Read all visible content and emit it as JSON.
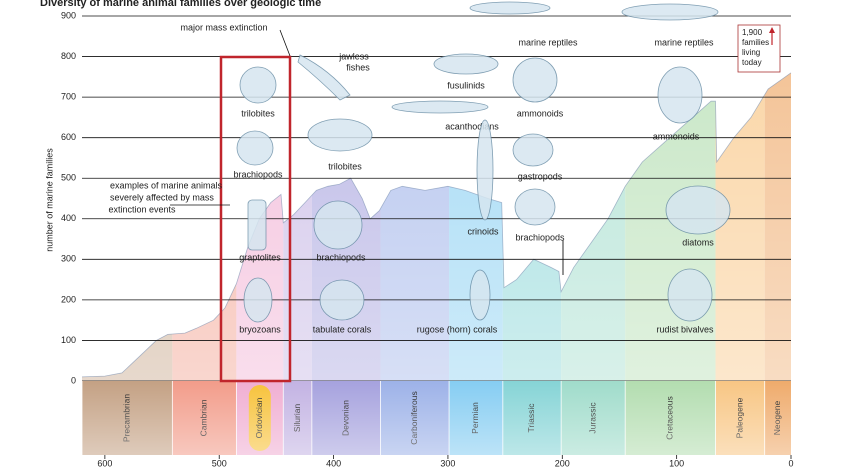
{
  "chart_data": {
    "type": "area",
    "title": "Diversity of marine animal families over geologic time",
    "ylabel": "number of marine families",
    "xlim": [
      620,
      0
    ],
    "ylim": [
      0,
      900
    ],
    "xticks": [
      600,
      500,
      400,
      300,
      200,
      100,
      0
    ],
    "yticks": [
      0,
      100,
      200,
      300,
      400,
      500,
      600,
      700,
      800,
      900
    ],
    "grid": true,
    "x": [
      620,
      600,
      585,
      570,
      555,
      545,
      530,
      520,
      505,
      495,
      485,
      475,
      465,
      455,
      446,
      444,
      435,
      425,
      415,
      405,
      395,
      385,
      375,
      368,
      360,
      350,
      340,
      320,
      300,
      285,
      265,
      253,
      251,
      240,
      225,
      210,
      203,
      201,
      190,
      175,
      160,
      145,
      130,
      110,
      90,
      70,
      66,
      65,
      50,
      35,
      20,
      10,
      0
    ],
    "values": [
      10,
      12,
      20,
      60,
      100,
      115,
      118,
      130,
      150,
      180,
      240,
      330,
      400,
      440,
      460,
      390,
      410,
      440,
      470,
      480,
      485,
      500,
      450,
      400,
      420,
      470,
      480,
      470,
      480,
      470,
      450,
      440,
      230,
      250,
      300,
      280,
      270,
      220,
      280,
      340,
      400,
      480,
      540,
      590,
      640,
      690,
      690,
      540,
      600,
      650,
      720,
      740,
      760
    ],
    "periods": [
      {
        "name": "Precambrian",
        "start": 620,
        "end": 541,
        "color": "#c4a184"
      },
      {
        "name": "Cambrian",
        "start": 541,
        "end": 485,
        "color": "#f29c8a"
      },
      {
        "name": "Ordovician",
        "start": 485,
        "end": 444,
        "color": "#f0aed2"
      },
      {
        "name": "Silurian",
        "start": 444,
        "end": 419,
        "color": "#c3b3e3"
      },
      {
        "name": "Devonian",
        "start": 419,
        "end": 359,
        "color": "#a6a2de"
      },
      {
        "name": "Carboniferous",
        "start": 359,
        "end": 299,
        "color": "#9db2e8"
      },
      {
        "name": "Permian",
        "start": 299,
        "end": 252,
        "color": "#86cdf2"
      },
      {
        "name": "Triassic",
        "start": 252,
        "end": 201,
        "color": "#86d4d6"
      },
      {
        "name": "Jurassic",
        "start": 201,
        "end": 145,
        "color": "#a0dccb"
      },
      {
        "name": "Cretaceous",
        "start": 145,
        "end": 66,
        "color": "#b3ddb0"
      },
      {
        "name": "Paleogene",
        "start": 66,
        "end": 23,
        "color": "#f8c684"
      },
      {
        "name": "Neogene",
        "start": 23,
        "end": 0,
        "color": "#efab6c"
      }
    ],
    "annotations": [
      "major mass extinction",
      "marine reptiles",
      "marine reptiles",
      "fusulinids",
      "trilobites",
      "trilobites",
      "acanthodians",
      "ammonoids",
      "ammonoids",
      "brachiopods",
      "brachiopods",
      "brachiopods",
      "gastropods",
      "crinoids",
      "diatoms",
      "graptolites",
      "bryozoans",
      "tabulate corals",
      "rugose (horn) corals",
      "rudist bivalves"
    ],
    "jawless": [
      "jawless",
      "fishes"
    ],
    "callout": [
      "examples of marine animals",
      "severely affected by mass",
      "extinction events"
    ],
    "today_note": [
      "1,900",
      "families",
      "living",
      "today"
    ]
  }
}
